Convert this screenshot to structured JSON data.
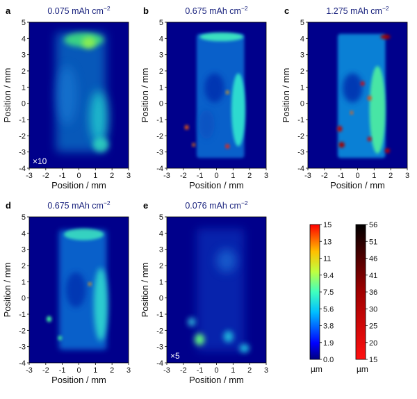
{
  "figure": {
    "panels": [
      {
        "id": "a",
        "title_value": "0.075",
        "title_unit": "mAh cm",
        "title_exp": "−2",
        "multiplier": "×10"
      },
      {
        "id": "b",
        "title_value": "0.675",
        "title_unit": "mAh cm",
        "title_exp": "−2",
        "multiplier": ""
      },
      {
        "id": "c",
        "title_value": "1.275",
        "title_unit": "mAh cm",
        "title_exp": "−2",
        "multiplier": ""
      },
      {
        "id": "d",
        "title_value": "0.675",
        "title_unit": "mAh cm",
        "title_exp": "−2",
        "multiplier": ""
      },
      {
        "id": "e",
        "title_value": "0.076",
        "title_unit": "mAh cm",
        "title_exp": "−2",
        "multiplier": "×5"
      }
    ],
    "xlabel": "Position / mm",
    "ylabel": "Position / mm",
    "xticks": [
      "-3",
      "-2",
      "-1",
      "0",
      "1",
      "2",
      "3"
    ],
    "yticks": [
      "5",
      "4",
      "3",
      "2",
      "1",
      "0",
      "-1",
      "-2",
      "-3",
      "-4"
    ],
    "colorbar_jet": {
      "ticks": [
        "15",
        "13",
        "11",
        "9.4",
        "7.5",
        "5.6",
        "3.8",
        "1.9",
        "0.0"
      ],
      "unit": "µm",
      "colors": [
        "#00007f",
        "#0000ff",
        "#007fff",
        "#00ffff",
        "#7fff7f",
        "#ffff00",
        "#ff7f00",
        "#ff0000"
      ]
    },
    "colorbar_hot": {
      "ticks": [
        "56",
        "51",
        "46",
        "41",
        "36",
        "30",
        "25",
        "20",
        "15"
      ],
      "unit": "µm",
      "colors": [
        "#000000",
        "#4a0000",
        "#a00000",
        "#ff0000"
      ]
    },
    "background_color": "#00008b"
  }
}
